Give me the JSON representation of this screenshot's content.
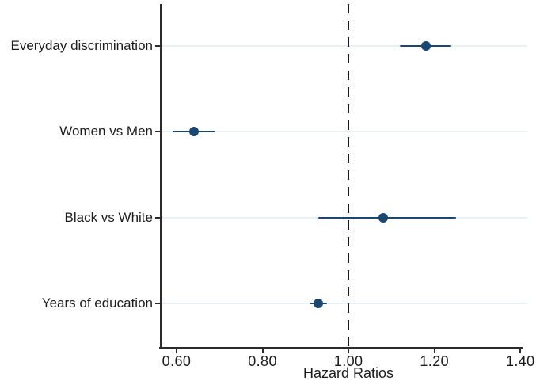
{
  "chart_data": {
    "type": "scatter",
    "variant": "forest-plot",
    "title": "",
    "xlabel": "Hazard Ratios",
    "categories": [
      "Everyday discrimination",
      "Women vs Men",
      "Black vs White",
      "Years of education"
    ],
    "points": [
      {
        "category": "Everyday discrimination",
        "hr": 1.18,
        "ci_low": 1.12,
        "ci_high": 1.24
      },
      {
        "category": "Women vs Men",
        "hr": 0.64,
        "ci_low": 0.59,
        "ci_high": 0.69
      },
      {
        "category": "Black vs White",
        "hr": 1.08,
        "ci_low": 0.93,
        "ci_high": 1.25
      },
      {
        "category": "Years of education",
        "hr": 0.93,
        "ci_low": 0.91,
        "ci_high": 0.95
      }
    ],
    "x_ticks": [
      {
        "value": 0.6,
        "label": "0.60"
      },
      {
        "value": 0.8,
        "label": "0.80"
      },
      {
        "value": 1.0,
        "label": "1.00"
      },
      {
        "value": 1.2,
        "label": "1.20"
      },
      {
        "value": 1.4,
        "label": "1.40"
      }
    ],
    "xlim": [
      0.565,
      1.405
    ],
    "reference_line": {
      "value": 1.0,
      "style": "dashed"
    },
    "grid": "horizontal",
    "legend": false,
    "colors": {
      "marker": "#1a476f",
      "ci": "#1a476f",
      "gridline": "#e9f0f2",
      "axis": "#2b2b2b",
      "reference": "#1a1a1a",
      "text": "#1c1c1c",
      "background": "#ffffff"
    }
  }
}
